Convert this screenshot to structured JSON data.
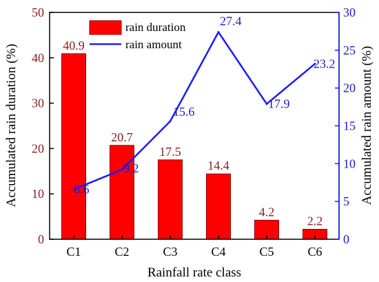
{
  "chart_data": {
    "type": "bar",
    "categories": [
      "C1",
      "C2",
      "C3",
      "C4",
      "C5",
      "C6"
    ],
    "xlabel": "Rainfall rate class",
    "ylabel_left": "Accumulated rain duration (%)",
    "ylabel_right": "Accumulated rain amount (%)",
    "ylim_left": [
      0,
      50
    ],
    "ylim_right": [
      0,
      30
    ],
    "yticks_left": [
      "0",
      "10",
      "20",
      "30",
      "40",
      "50"
    ],
    "yticks_right": [
      "0",
      "5",
      "10",
      "15",
      "20",
      "25",
      "30"
    ],
    "grid": false,
    "legend_position": "top",
    "series": [
      {
        "name": "rain duration",
        "type": "bar",
        "axis": "left",
        "values": [
          40.9,
          20.7,
          17.5,
          14.4,
          4.2,
          2.2
        ],
        "labels": [
          "40.9",
          "20.7",
          "17.5",
          "14.4",
          "4.2",
          "2.2"
        ],
        "color": "#ff0000"
      },
      {
        "name": "rain amount",
        "type": "line",
        "axis": "right",
        "values": [
          6.6,
          9.2,
          15.6,
          27.4,
          17.9,
          23.2
        ],
        "labels": [
          "6.6",
          "9.2",
          "15.6",
          "27.4",
          "17.9",
          "23.2"
        ],
        "color": "#1a1aff"
      }
    ]
  }
}
